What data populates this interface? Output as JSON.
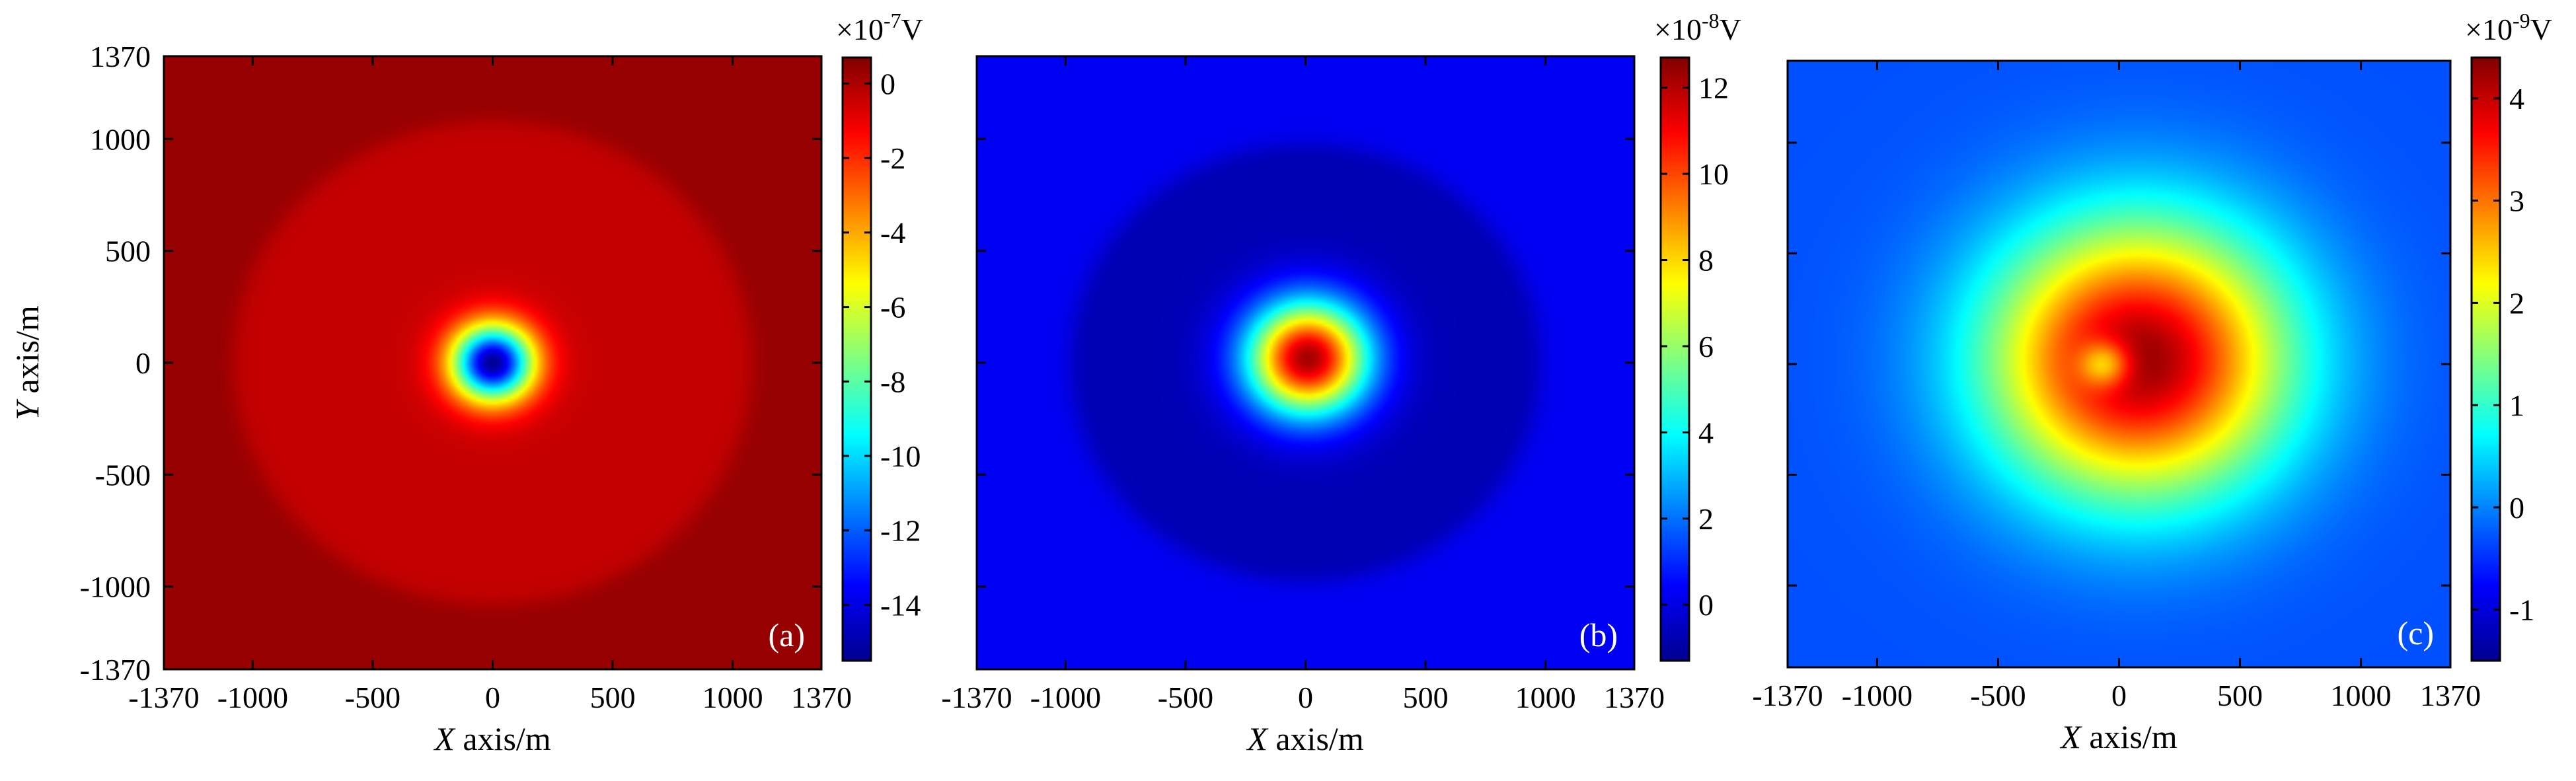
{
  "chart_data": [
    {
      "type": "heatmap",
      "panel_label": "(a)",
      "xlabel_italic": "X",
      "xlabel_rest": " axis/m",
      "ylabel_italic": "Y",
      "ylabel_rest": " axis/m",
      "xlim": [
        -1370,
        1370
      ],
      "ylim": [
        -1370,
        1370
      ],
      "xticks": [
        -1370,
        -1000,
        -500,
        0,
        500,
        1000,
        1370
      ],
      "xtick_labels": [
        "-1370",
        "-1000",
        "-500",
        "0",
        "500",
        "1000",
        "1370"
      ],
      "yticks": [
        -1370,
        -1000,
        -500,
        0,
        500,
        1000,
        1370
      ],
      "ytick_labels": [
        "-1370",
        "-1000",
        "-500",
        "0",
        "500",
        "1000",
        "1370"
      ],
      "colorbar": {
        "exponent_base": "×10",
        "exponent": "-7",
        "unit": "V",
        "range": [
          -15.5,
          0.7
        ],
        "ticks": [
          0,
          -2,
          -4,
          -6,
          -8,
          -10,
          -12,
          -14
        ],
        "tick_labels": [
          "0",
          "-2",
          "-4",
          "-6",
          "-8",
          "-10",
          "-12",
          "-14"
        ]
      },
      "field": {
        "background": 0.35,
        "disk_radius_m": 1080,
        "disk_value": -0.4,
        "anomaly_center": [
          0,
          0
        ],
        "anomaly_peak": -15.2,
        "anomaly_sigma_m": 120
      }
    },
    {
      "type": "heatmap",
      "panel_label": "(b)",
      "xlabel_italic": "X",
      "xlabel_rest": " axis/m",
      "xlim": [
        -1370,
        1370
      ],
      "ylim": [
        -1370,
        1370
      ],
      "xticks": [
        -1370,
        -1000,
        -500,
        0,
        500,
        1000,
        1370
      ],
      "xtick_labels": [
        "-1370",
        "-1000",
        "-500",
        "0",
        "500",
        "1000",
        "1370"
      ],
      "colorbar": {
        "exponent_base": "×10",
        "exponent": "-8",
        "unit": "V",
        "range": [
          -1.3,
          12.7
        ],
        "ticks": [
          0,
          2,
          4,
          6,
          8,
          10,
          12
        ],
        "tick_labels": [
          "0",
          "2",
          "4",
          "6",
          "8",
          "10",
          "12"
        ]
      },
      "field": {
        "background": 0.3,
        "disk_radius_m": 980,
        "disk_value": -0.6,
        "anomaly_center": [
          10,
          20
        ],
        "anomaly_peak": 12.2,
        "anomaly_sigma_m": 175
      }
    },
    {
      "type": "heatmap",
      "panel_label": "(c)",
      "xlabel_italic": "X",
      "xlabel_rest": " axis/m",
      "xlim": [
        -1370,
        1370
      ],
      "ylim": [
        -1370,
        1370
      ],
      "xticks": [
        -1370,
        -1000,
        -500,
        0,
        500,
        1000,
        1370
      ],
      "xtick_labels": [
        "-1370",
        "-1000",
        "-500",
        "0",
        "500",
        "1000",
        "1370"
      ],
      "colorbar": {
        "exponent_base": "×10",
        "exponent": "-9",
        "unit": "V",
        "range": [
          -1.5,
          4.4
        ],
        "ticks": [
          4,
          3,
          2,
          1,
          0,
          -1
        ],
        "tick_labels": [
          "4",
          "3",
          "2",
          "1",
          "0",
          "-1"
        ]
      },
      "field": {
        "background": -0.3,
        "anomaly_center": [
          80,
          20
        ],
        "anomaly_peak": 4.3,
        "anomaly_sigma_m": 430,
        "notch_center": [
          -60,
          0
        ],
        "notch_depth": 1.6,
        "notch_sigma_m": 75
      }
    }
  ]
}
